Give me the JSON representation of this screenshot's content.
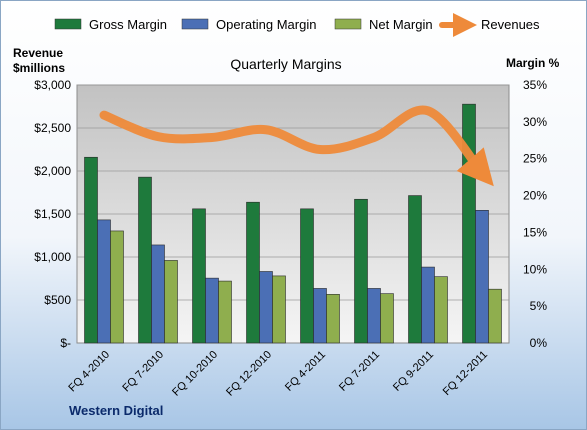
{
  "chart_data": {
    "type": "bar",
    "title": "Quarterly Margins",
    "left_axis_title_lines": [
      "Revenue",
      "$millions"
    ],
    "right_axis_title": "Margin %",
    "company": "Western Digital",
    "categories": [
      "FQ 4-2010",
      "FQ 7-2010",
      "FQ 10-2010",
      "FQ 12-2010",
      "FQ 4-2011",
      "FQ 7-2011",
      "FQ 9-2011",
      "FQ 12-2011"
    ],
    "series": [
      {
        "name": "Gross Margin",
        "axis": "right",
        "color": "#1e7a3c",
        "values": [
          25.2,
          22.5,
          18.2,
          19.1,
          18.2,
          19.5,
          20.0,
          32.4
        ]
      },
      {
        "name": "Operating Margin",
        "axis": "right",
        "color": "#4b6fb5",
        "values": [
          16.7,
          13.3,
          8.8,
          9.7,
          7.4,
          7.4,
          10.3,
          18.0
        ]
      },
      {
        "name": "Net Margin",
        "axis": "right",
        "color": "#8fae4e",
        "values": [
          15.2,
          11.2,
          8.4,
          9.1,
          6.6,
          6.7,
          9.0,
          7.3
        ]
      }
    ],
    "line_series": {
      "name": "Revenues",
      "axis": "left",
      "color": "#ee8a3a",
      "values": [
        2650,
        2400,
        2390,
        2480,
        2250,
        2390,
        2700,
        1980
      ]
    },
    "left_axis": {
      "min": 0,
      "max": 3000,
      "ticks": [
        "$-",
        "$500",
        "$1,000",
        "$1,500",
        "$2,000",
        "$2,500",
        "$3,000"
      ]
    },
    "right_axis": {
      "min": 0,
      "max": 35,
      "ticks": [
        "0%",
        "5%",
        "10%",
        "15%",
        "20%",
        "25%",
        "30%",
        "35%"
      ]
    },
    "legend_position": "top",
    "grid": true
  }
}
